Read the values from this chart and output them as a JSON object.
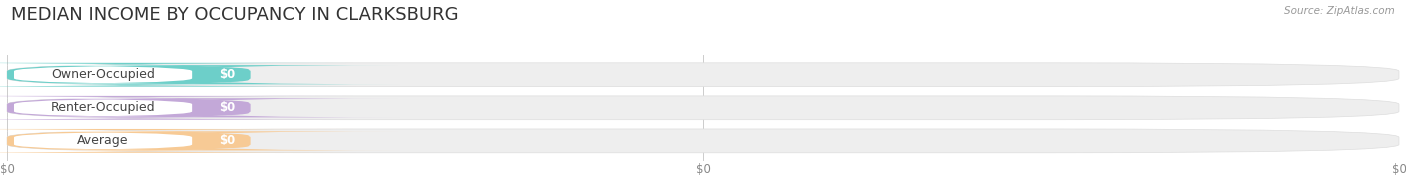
{
  "title": "MEDIAN INCOME BY OCCUPANCY IN CLARKSBURG",
  "source": "Source: ZipAtlas.com",
  "categories": [
    "Owner-Occupied",
    "Renter-Occupied",
    "Average"
  ],
  "values": [
    0,
    0,
    0
  ],
  "bar_colors": [
    "#6dcfc9",
    "#c3a8d8",
    "#f7ca95"
  ],
  "value_labels": [
    "$0",
    "$0",
    "$0"
  ],
  "x_tick_labels": [
    "$0",
    "$0",
    "$0"
  ],
  "background_color": "#ffffff",
  "bar_bg_color": "#eeeeee",
  "title_fontsize": 13,
  "fig_width": 14.06,
  "fig_height": 1.96
}
